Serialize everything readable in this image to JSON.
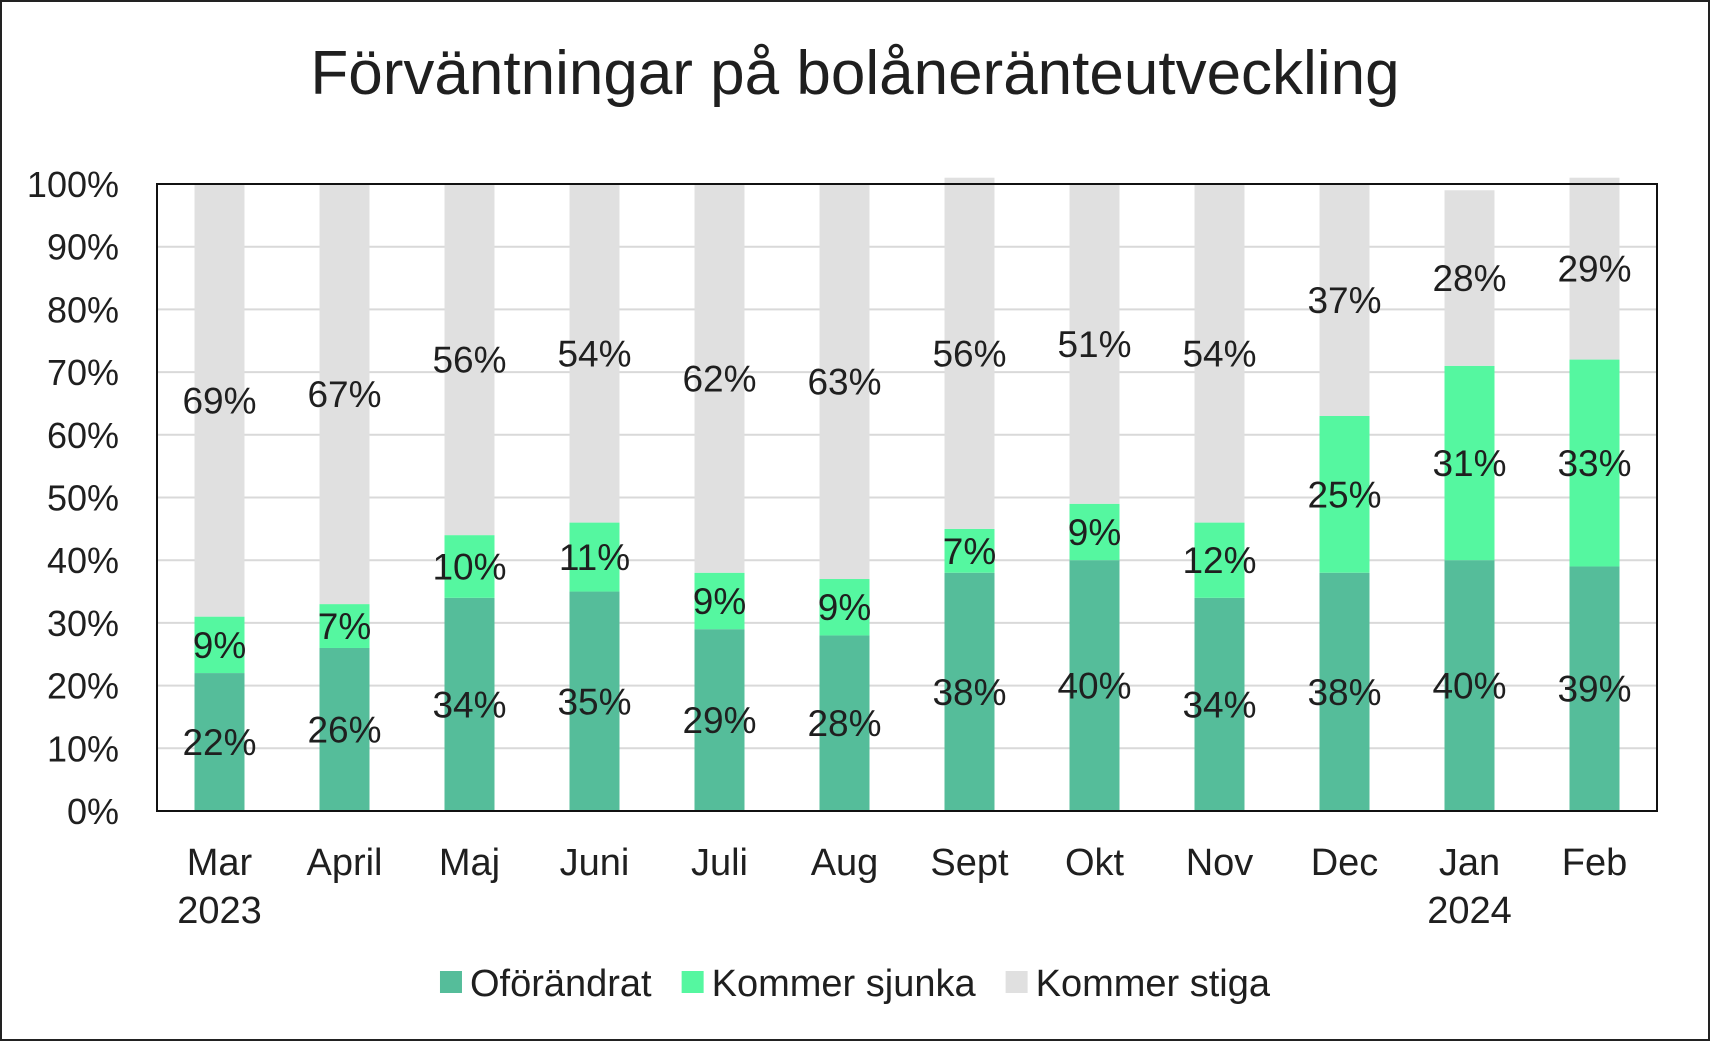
{
  "chart_data": {
    "type": "bar",
    "stacked": true,
    "title": "Förväntningar på bolåneränteutveckling",
    "xlabel": "",
    "ylabel": "",
    "ylim": [
      0,
      100
    ],
    "yticks": [
      "0%",
      "10%",
      "20%",
      "30%",
      "40%",
      "50%",
      "60%",
      "70%",
      "80%",
      "90%",
      "100%"
    ],
    "categories": [
      [
        "Mar",
        "2023"
      ],
      [
        "April"
      ],
      [
        "Maj"
      ],
      [
        "Juni"
      ],
      [
        "Juli"
      ],
      [
        "Aug"
      ],
      [
        "Sept"
      ],
      [
        "Okt"
      ],
      [
        "Nov"
      ],
      [
        "Dec"
      ],
      [
        "Jan",
        "2024"
      ],
      [
        "Feb"
      ]
    ],
    "series": [
      {
        "name": "Oförändrat",
        "color": "#55bd9a",
        "values": [
          22,
          26,
          34,
          35,
          29,
          28,
          38,
          40,
          34,
          38,
          40,
          39
        ]
      },
      {
        "name": "Kommer sjunka",
        "color": "#55f7a0",
        "values": [
          9,
          7,
          10,
          11,
          9,
          9,
          7,
          9,
          12,
          25,
          31,
          33
        ]
      },
      {
        "name": "Kommer stiga",
        "color": "#e0e0e0",
        "values": [
          69,
          67,
          56,
          54,
          62,
          63,
          56,
          51,
          54,
          37,
          28,
          29
        ]
      }
    ],
    "data_label_suffix": "%",
    "grid": true,
    "legend": "bottom"
  }
}
